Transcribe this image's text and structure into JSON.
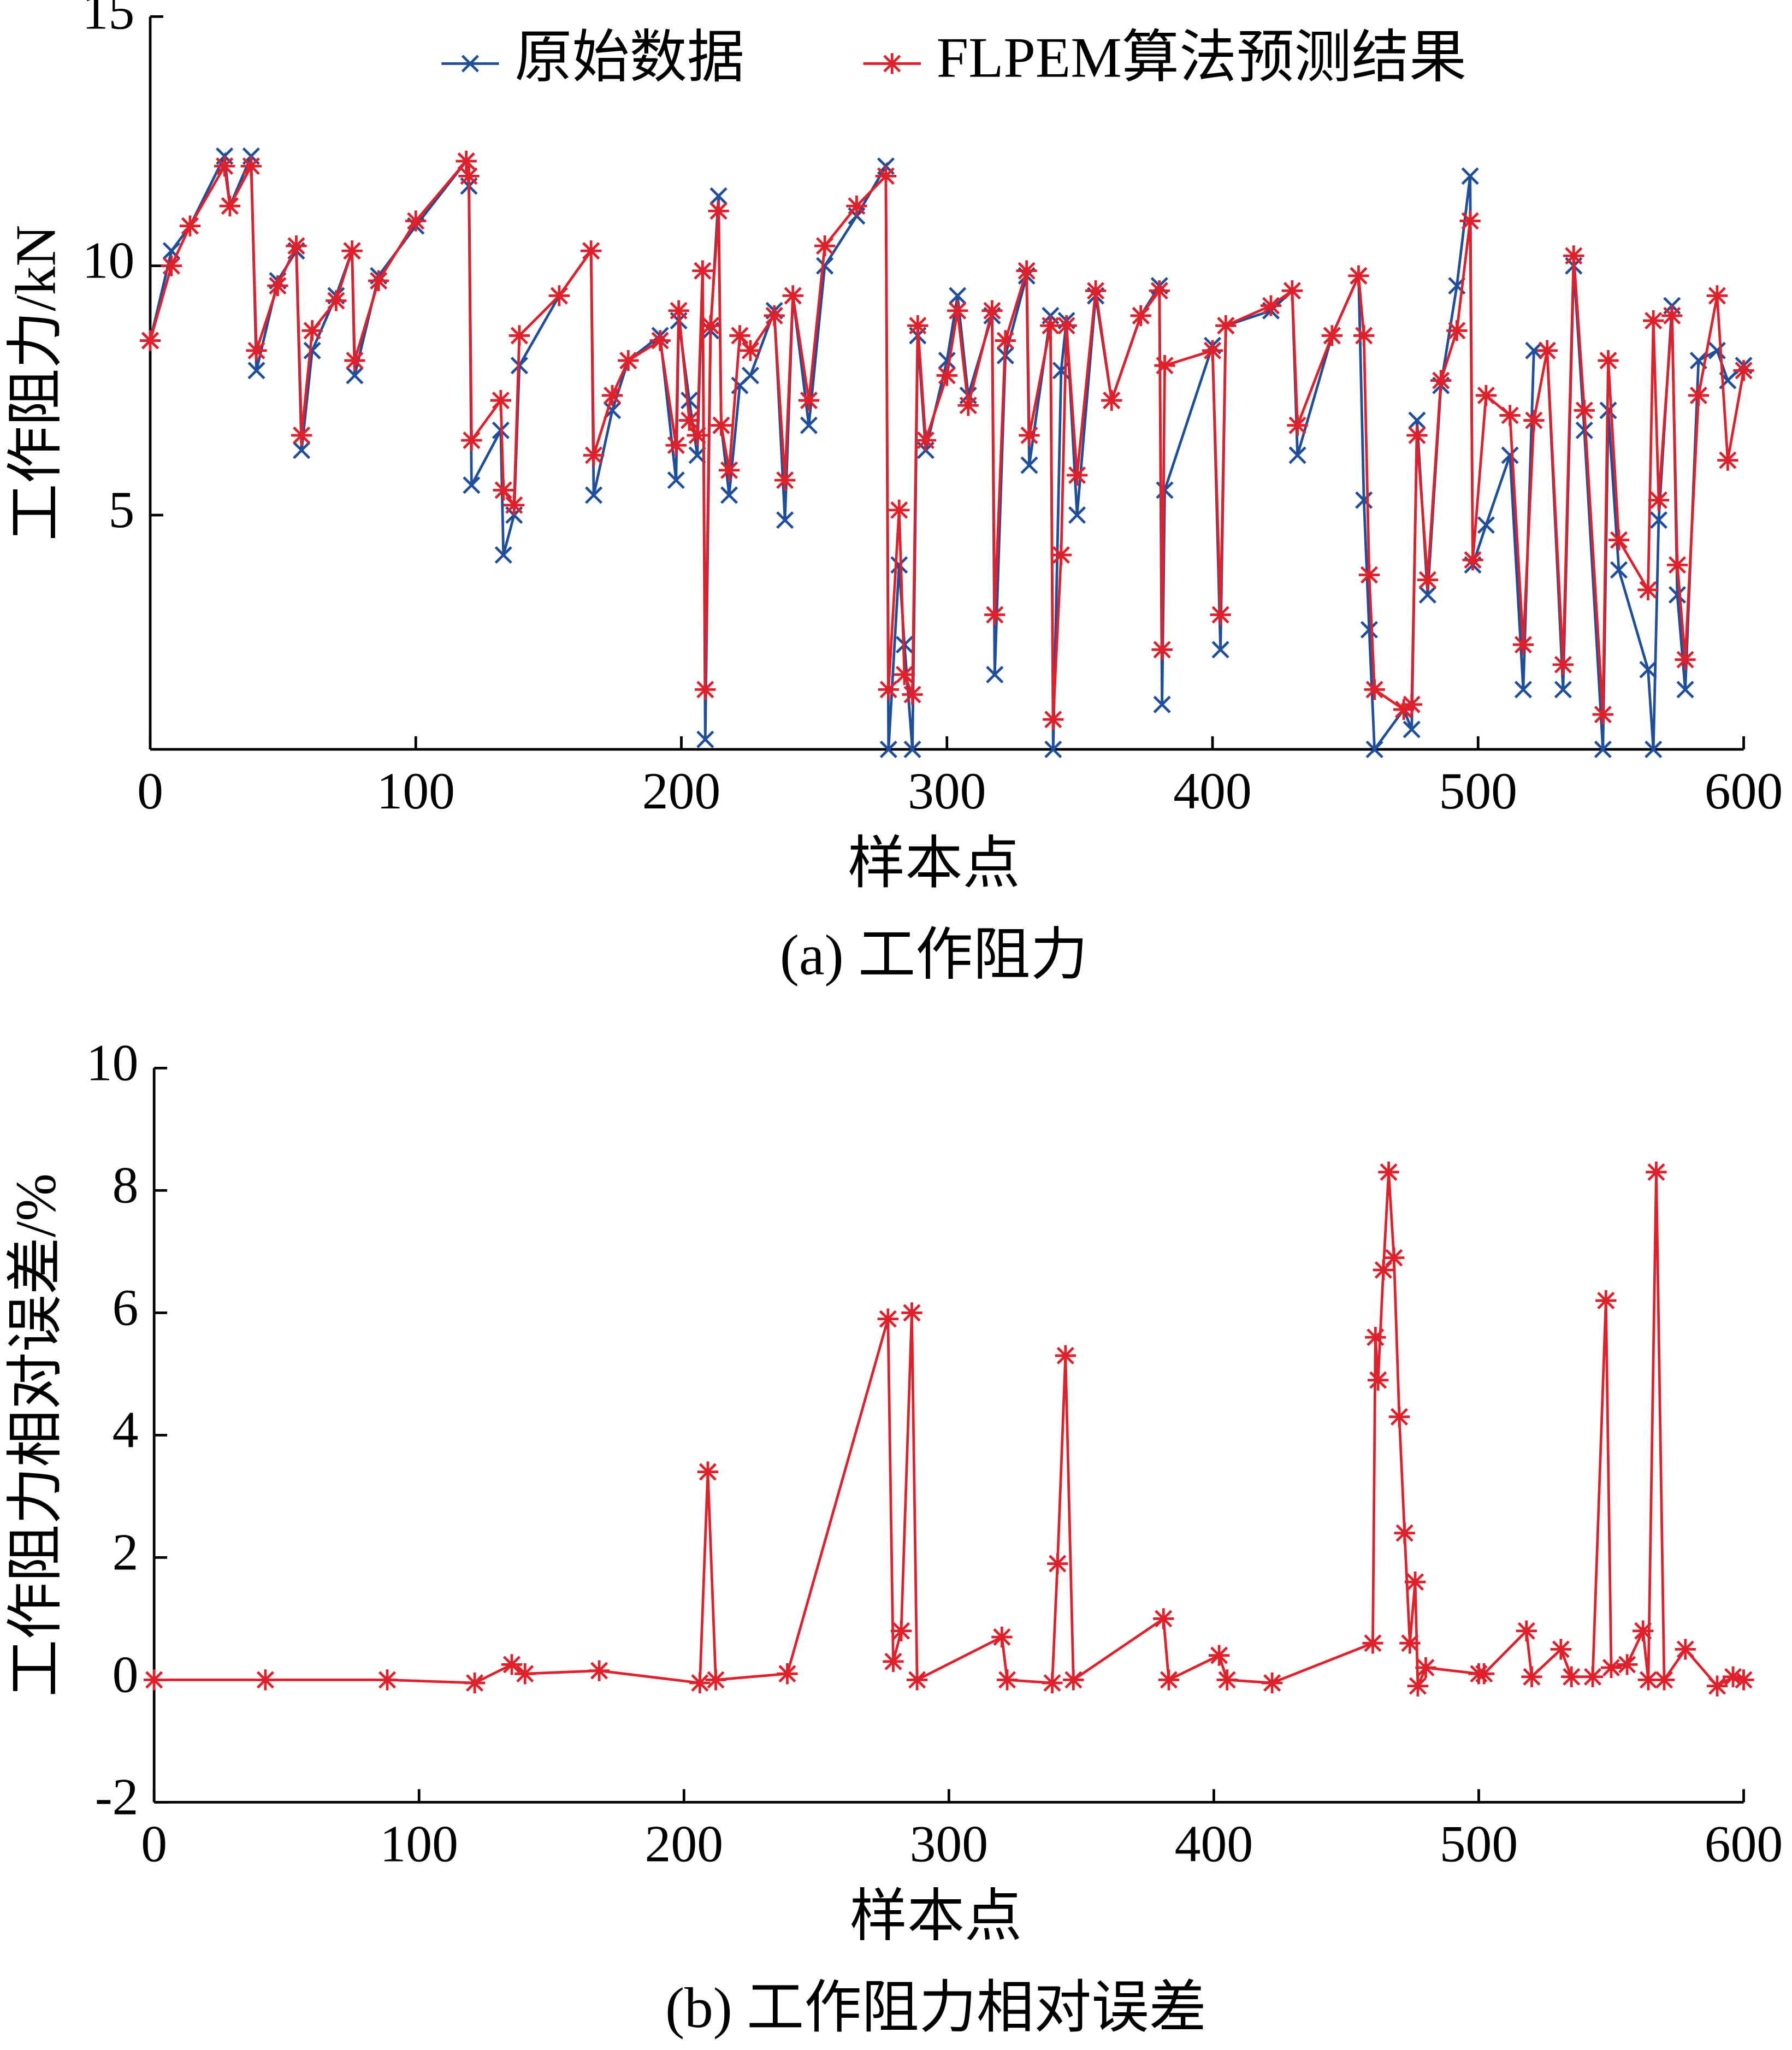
{
  "chart_data": [
    {
      "type": "line",
      "caption": "(a) 工作阻力",
      "xlabel": "样本点",
      "ylabel": "工作阻力/kN",
      "xlim": [
        0,
        600
      ],
      "xticks": [
        0,
        100,
        200,
        300,
        400,
        500,
        600
      ],
      "ylim": [
        0.3,
        15
      ],
      "yticks": [
        5,
        10,
        15
      ],
      "legend": "upper center",
      "x": [
        0,
        8,
        15,
        28,
        30,
        38,
        40,
        48,
        55,
        57,
        61,
        70,
        76,
        77,
        86,
        100,
        119,
        120,
        121,
        132,
        133,
        137,
        139,
        154,
        166,
        167,
        174,
        180,
        192,
        198,
        199,
        203,
        206,
        208,
        209,
        211,
        214,
        215,
        218,
        222,
        226,
        235,
        239,
        242,
        248,
        254,
        266,
        277,
        278,
        282,
        284,
        287,
        289,
        292,
        300,
        304,
        308,
        317,
        318,
        322,
        330,
        331,
        339,
        340,
        343,
        345,
        349,
        356,
        362,
        373,
        380,
        381,
        382,
        400,
        403,
        405,
        422,
        430,
        432,
        445,
        455,
        457,
        459,
        461,
        472,
        475,
        477,
        481,
        486,
        492,
        497,
        498,
        503,
        512,
        517,
        521,
        526,
        532,
        536,
        540,
        547,
        549,
        553,
        564,
        566,
        568,
        573,
        575,
        578,
        583,
        590,
        594,
        600
      ],
      "series": [
        {
          "name": "原始数据",
          "color": "#1f4e9c",
          "marker": "x",
          "values": [
            8.5,
            10.3,
            10.8,
            12.2,
            11.2,
            12.2,
            7.9,
            9.7,
            10.3,
            6.3,
            8.3,
            9.4,
            10.3,
            7.8,
            9.8,
            10.8,
            12.1,
            11.6,
            5.6,
            6.7,
            4.2,
            5.0,
            8.0,
            9.4,
            10.3,
            5.4,
            7.1,
            8.1,
            8.6,
            5.7,
            8.9,
            7.3,
            6.2,
            9.9,
            0.5,
            8.7,
            11.4,
            6.8,
            5.4,
            7.6,
            7.8,
            9.1,
            4.9,
            9.4,
            6.8,
            10.0,
            11.0,
            12.0,
            0.3,
            4.0,
            2.4,
            0.3,
            8.6,
            6.3,
            8.1,
            9.4,
            7.4,
            9.0,
            1.8,
            8.2,
            9.8,
            6.0,
            9.0,
            0.3,
            7.9,
            8.9,
            5.0,
            9.4,
            7.3,
            9.0,
            9.6,
            1.2,
            5.5,
            8.4,
            2.3,
            8.8,
            9.1,
            9.5,
            6.2,
            8.6,
            9.8,
            5.3,
            2.7,
            0.3,
            1.1,
            0.7,
            6.9,
            3.4,
            7.6,
            9.6,
            11.8,
            4.0,
            4.8,
            6.2,
            1.5,
            8.3,
            8.3,
            1.5,
            10.0,
            6.7,
            0.3,
            7.1,
            3.9,
            1.9,
            0.3,
            4.9,
            9.2,
            3.4,
            1.5,
            8.1,
            8.3,
            7.7,
            8.0
          ]
        },
        {
          "name": "FLPEM算法预测结果",
          "color": "#e0202a",
          "marker": "*",
          "values": [
            8.5,
            10.0,
            10.8,
            12.0,
            11.2,
            12.0,
            8.3,
            9.6,
            10.4,
            6.6,
            8.7,
            9.3,
            10.3,
            8.1,
            9.7,
            10.9,
            12.1,
            11.8,
            6.5,
            7.3,
            5.5,
            5.2,
            8.6,
            9.4,
            10.3,
            6.2,
            7.4,
            8.1,
            8.5,
            6.4,
            9.1,
            6.9,
            6.6,
            9.9,
            1.5,
            8.8,
            11.1,
            6.8,
            5.9,
            8.6,
            8.3,
            9.0,
            5.7,
            9.4,
            7.3,
            10.4,
            11.2,
            11.8,
            1.5,
            5.1,
            1.8,
            1.4,
            8.8,
            6.5,
            7.8,
            9.1,
            7.2,
            9.1,
            3.0,
            8.5,
            9.9,
            6.6,
            8.8,
            0.9,
            4.2,
            8.8,
            5.8,
            9.5,
            7.3,
            9.0,
            9.5,
            2.3,
            8.0,
            8.3,
            3.0,
            8.8,
            9.2,
            9.5,
            6.8,
            8.6,
            9.8,
            8.6,
            3.8,
            1.5,
            1.1,
            1.2,
            6.6,
            3.7,
            7.7,
            8.7,
            10.9,
            4.1,
            7.4,
            7.0,
            2.4,
            6.9,
            8.3,
            2.0,
            10.2,
            7.1,
            1.0,
            8.1,
            4.5,
            3.5,
            8.9,
            5.3,
            9.0,
            4.0,
            2.1,
            7.4,
            9.4,
            6.1,
            7.9
          ]
        }
      ]
    },
    {
      "type": "line",
      "caption": "(b) 工作阻力相对误差",
      "xlabel": "样本点",
      "ylabel": "工作阻力相对误差/%",
      "xlim": [
        0,
        600
      ],
      "xticks": [
        0,
        100,
        200,
        300,
        400,
        500,
        600
      ],
      "ylim": [
        -2,
        10
      ],
      "yticks": [
        -2,
        0,
        2,
        4,
        6,
        8,
        10
      ],
      "x": [
        0,
        42,
        88,
        121,
        135,
        140,
        168,
        206,
        209,
        212,
        239,
        277,
        279,
        282,
        286,
        288,
        320,
        322,
        339,
        341,
        344,
        347,
        381,
        383,
        402,
        405,
        422,
        460,
        461,
        462,
        464,
        466,
        468,
        470,
        472,
        474,
        476,
        477,
        480,
        500,
        502,
        518,
        520,
        531,
        535,
        543,
        548,
        550,
        556,
        562,
        564,
        567,
        570,
        578,
        590,
        596,
        600
      ],
      "series": [
        {
          "name": "FLPEM算法预测结果",
          "color": "#e0202a",
          "marker": "*",
          "values": [
            0,
            0,
            0,
            -0.05,
            0.25,
            0.1,
            0.15,
            -0.05,
            3.4,
            0,
            0.1,
            5.9,
            0.3,
            0.8,
            6.0,
            0,
            0.7,
            0,
            -0.05,
            1.9,
            5.3,
            0,
            1.0,
            0,
            0.4,
            0,
            -0.05,
            0.6,
            5.6,
            4.9,
            6.7,
            8.3,
            6.9,
            4.3,
            2.4,
            0.6,
            1.6,
            -0.1,
            0.2,
            0.1,
            0.1,
            0.8,
            0.05,
            0.5,
            0.05,
            0.05,
            6.2,
            0.2,
            0.25,
            0.8,
            0,
            8.3,
            0,
            0.5,
            -0.1,
            0.05,
            0
          ]
        }
      ]
    }
  ]
}
